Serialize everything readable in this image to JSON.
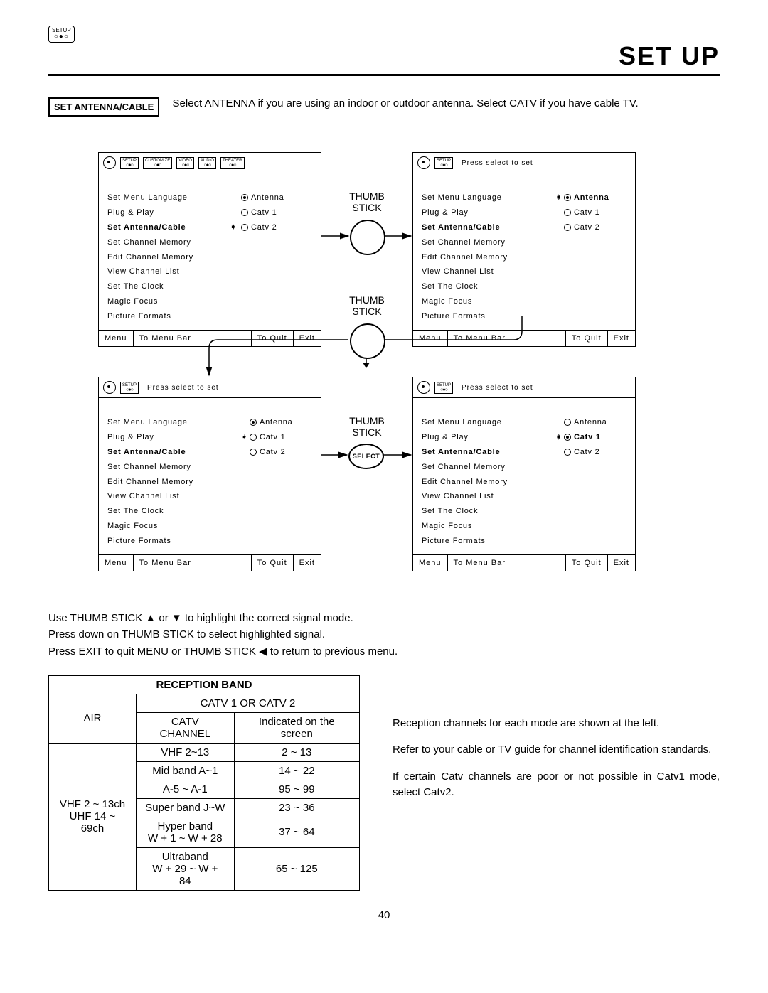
{
  "header": {
    "icon_label": "SETUP",
    "title": "SET UP"
  },
  "intro": {
    "box": "SET ANTENNA/CABLE",
    "text": "Select ANTENNA if you are using an indoor or outdoor antenna.  Select CATV if you have cable TV."
  },
  "tabs": [
    "SETUP",
    "CUSTOMIZE",
    "VIDEO",
    "AUDIO",
    "THEATER"
  ],
  "menu_items": [
    "Set Menu Language",
    "Plug & Play",
    "Set Antenna/Cable",
    "Set Channel Memory",
    "Edit Channel Memory",
    "View Channel List",
    "Set The Clock",
    "Magic Focus",
    "Picture Formats"
  ],
  "options": [
    "Antenna",
    "Catv 1",
    "Catv 2"
  ],
  "footer": {
    "menu": "Menu",
    "bar": "To Menu Bar",
    "quit": "To Quit",
    "exit": "Exit"
  },
  "press_select": "Press select to set",
  "panels": [
    {
      "show_all_tabs": true,
      "show_press": false,
      "arrow_row": 2,
      "selected_opt": 0,
      "cursor_opt": null,
      "bold_opt": false
    },
    {
      "show_all_tabs": false,
      "show_press": true,
      "arrow_row": -1,
      "selected_opt": 0,
      "cursor_opt": 0,
      "bold_opt": true
    },
    {
      "show_all_tabs": false,
      "show_press": true,
      "arrow_row": -1,
      "selected_opt": 0,
      "cursor_opt": 1,
      "bold_opt": false
    },
    {
      "show_all_tabs": false,
      "show_press": true,
      "arrow_row": -1,
      "selected_opt": 1,
      "cursor_opt": 1,
      "bold_opt": true
    }
  ],
  "thumb_labels": {
    "top": "THUMB\nSTICK",
    "mid": "THUMB\nSTICK",
    "bot": "THUMB\nSTICK",
    "select": "SELECT"
  },
  "instructions": [
    "Use THUMB STICK ▲ or ▼ to highlight the correct signal mode.",
    "Press down on THUMB STICK to select highlighted signal.",
    "Press EXIT to quit MENU or THUMB STICK ◀ to return to previous menu."
  ],
  "table": {
    "title": "RECEPTION BAND",
    "sub": "CATV 1 OR CATV 2",
    "air_hdr": "AIR",
    "catv_hdr": "CATV CHANNEL",
    "ind_hdr": "Indicated on the screen",
    "air_body": "VHF 2 ~ 13ch\nUHF 14 ~ 69ch",
    "rows": [
      [
        "VHF 2~13",
        "2 ~ 13"
      ],
      [
        "Mid band A~1",
        "14 ~ 22"
      ],
      [
        "A-5 ~ A-1",
        "95 ~ 99"
      ],
      [
        "Super band J~W",
        "23 ~ 36"
      ],
      [
        "Hyper band\nW + 1 ~ W + 28",
        "37 ~ 64"
      ],
      [
        "Ultraband\nW + 29 ~ W + 84",
        "65 ~ 125"
      ]
    ]
  },
  "right_notes": [
    "Reception channels for each mode are shown at the left.",
    "Refer to your cable or TV guide for channel identification standards.",
    "If certain Catv channels are poor or not possible in Catv1 mode, select Catv2."
  ],
  "page_number": "40"
}
